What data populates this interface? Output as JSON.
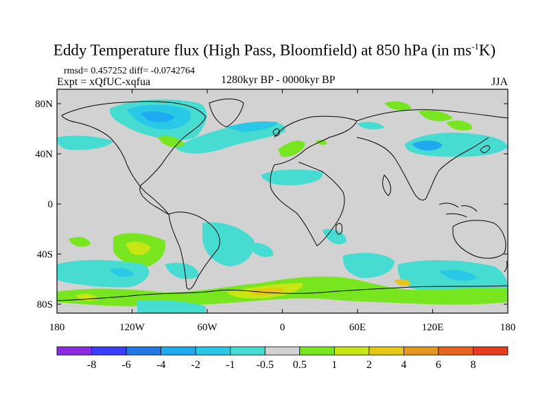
{
  "title": {
    "text": "Eddy Temperature flux (High Pass, Bloomfield) at 850 hPa (in ms",
    "sup": "-1",
    "tail": "K)"
  },
  "stats": "rmsd= 0.457252 diff= -0.0742764",
  "expt": "Expt = xQfUC-xqfua",
  "period": "1280kyr BP - 0000kyr BP",
  "season": "JJA",
  "lat_ticks": [
    "80N",
    "40N",
    "0",
    "40S",
    "80S"
  ],
  "lon_ticks": [
    "180",
    "120W",
    "60W",
    "0",
    "60E",
    "120E",
    "180"
  ],
  "colorbar": {
    "labels": [
      "-8",
      "-6",
      "-4",
      "-2",
      "-1",
      "-0.5",
      "0.5",
      "1",
      "2",
      "4",
      "6",
      "8"
    ],
    "colors": [
      "#8a2be2",
      "#3c3cff",
      "#1e78e6",
      "#1eaaf0",
      "#28c8e6",
      "#46dcd2",
      "#d2d2d2",
      "#78e61e",
      "#c8e614",
      "#e6c814",
      "#e6961e",
      "#e6641e",
      "#e63c1e"
    ]
  },
  "colors": {
    "ocean_fill": "#d2d2d2",
    "coast": "#000000"
  }
}
